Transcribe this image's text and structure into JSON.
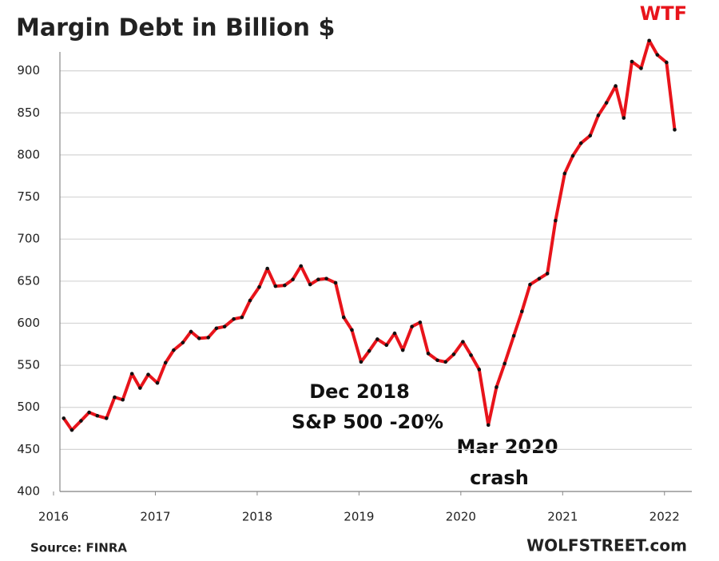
{
  "chart_data": {
    "type": "line",
    "title": "Margin Debt in Billion $",
    "annotations": [
      "WTF",
      "Dec 2018",
      "S&P 500 -20%",
      "Mar 2020",
      "crash"
    ],
    "source": "Source: FINRA",
    "credit": "WOLFSTREET.com",
    "x": [
      2016.1,
      2016.18,
      2016.27,
      2016.35,
      2016.43,
      2016.52,
      2016.6,
      2016.68,
      2016.77,
      2016.85,
      2016.93,
      2017.02,
      2017.1,
      2017.18,
      2017.27,
      2017.35,
      2017.43,
      2017.52,
      2017.6,
      2017.68,
      2017.77,
      2017.85,
      2017.93,
      2018.02,
      2018.1,
      2018.18,
      2018.27,
      2018.35,
      2018.43,
      2018.52,
      2018.6,
      2018.68,
      2018.77,
      2018.85,
      2018.93,
      2019.02,
      2019.1,
      2019.18,
      2019.27,
      2019.35,
      2019.43,
      2019.52,
      2019.6,
      2019.68,
      2019.77,
      2019.85,
      2019.93,
      2020.02,
      2020.1,
      2020.18,
      2020.27,
      2020.35,
      2020.43,
      2020.52,
      2020.6,
      2020.68,
      2020.77,
      2020.85,
      2020.93,
      2021.02,
      2021.1,
      2021.18,
      2021.27,
      2021.35,
      2021.43,
      2021.52,
      2021.6,
      2021.68,
      2021.77,
      2021.85,
      2021.93,
      2022.02,
      2022.1
    ],
    "series": [
      {
        "name": "Margin Debt",
        "color": "#e8141b",
        "values": [
          487,
          473,
          484,
          494,
          490,
          487,
          512,
          509,
          540,
          523,
          539,
          529,
          553,
          568,
          577,
          590,
          582,
          583,
          594,
          596,
          605,
          607,
          627,
          643,
          665,
          644,
          645,
          652,
          668,
          646,
          652,
          653,
          648,
          607,
          592,
          554,
          567,
          581,
          574,
          588,
          568,
          596,
          601,
          564,
          556,
          554,
          563,
          578,
          562,
          545,
          479,
          524,
          552,
          585,
          614,
          646,
          653,
          659,
          722,
          778,
          799,
          814,
          823,
          847,
          862,
          882,
          844,
          911,
          903,
          936,
          919,
          910,
          830
        ]
      }
    ],
    "xlim": [
      2016,
      2022.3
    ],
    "xticks": [
      2016,
      2017,
      2018,
      2019,
      2020,
      2021,
      2022
    ],
    "ylim": [
      400,
      950
    ],
    "yticks": [
      400,
      450,
      500,
      550,
      600,
      650,
      700,
      750,
      800,
      850,
      900
    ],
    "grid": true,
    "marker_color": "#111111"
  }
}
